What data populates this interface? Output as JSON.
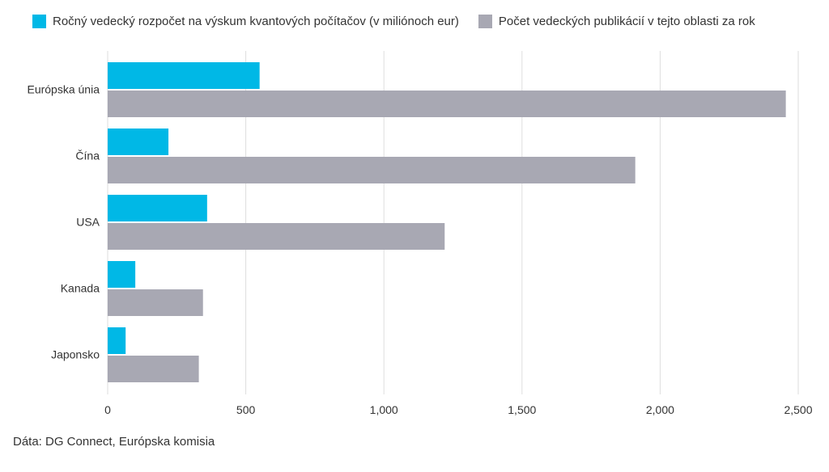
{
  "colors": {
    "budget": "#00b8e6",
    "publications": "#a8a8b3",
    "grid": "#dedede"
  },
  "chart_data": {
    "type": "bar",
    "orientation": "horizontal",
    "categories": [
      "Európska únia",
      "Čína",
      "USA",
      "Kanada",
      "Japonsko"
    ],
    "series": [
      {
        "name": "Ročný vedecký rozpočet na výskum kvantových počítačov (v miliónoch eur)",
        "values": [
          550,
          220,
          360,
          100,
          65
        ]
      },
      {
        "name": "Počet vedeckých publikácií v tejto oblasti za rok",
        "values": [
          2455,
          1910,
          1220,
          345,
          330
        ]
      }
    ],
    "xlim": [
      0,
      2500
    ],
    "xticks": [
      0,
      500,
      1000,
      1500,
      2000,
      2500
    ],
    "xtick_labels": [
      "0",
      "500",
      "1,000",
      "1,500",
      "2,000",
      "2,500"
    ],
    "grid": "vertical",
    "legend": "top-left"
  },
  "source": "Dáta: DG Connect, Európska komisia"
}
